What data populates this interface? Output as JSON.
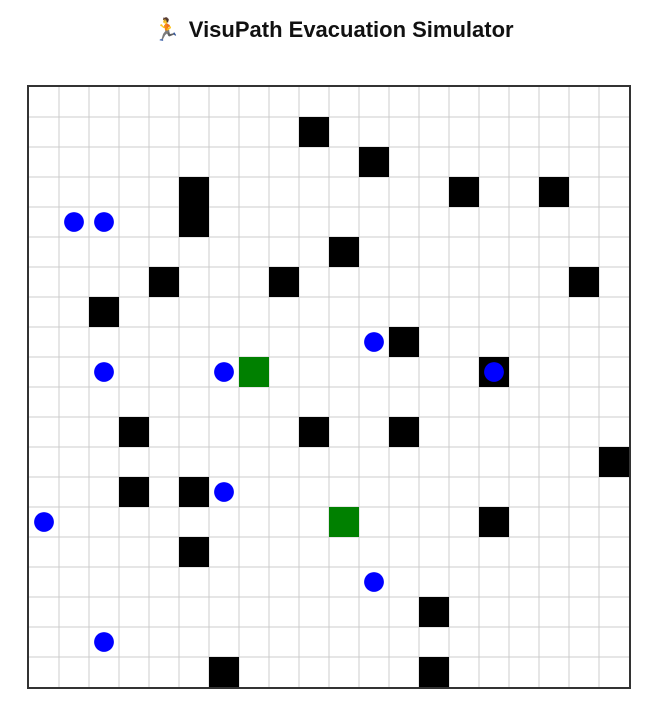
{
  "header": {
    "icon": "runner-icon",
    "icon_glyph": "🏃",
    "title": "VisuPath Evacuation Simulator"
  },
  "grid": {
    "rows": 20,
    "cols": 20,
    "colors": {
      "grid_line": "#cccccc",
      "border": "#333333",
      "obstacle": "#000000",
      "exit": "#008000",
      "agent": "#0000ff"
    },
    "obstacles": [
      {
        "row": 1,
        "col": 9
      },
      {
        "row": 2,
        "col": 11
      },
      {
        "row": 3,
        "col": 5
      },
      {
        "row": 3,
        "col": 14
      },
      {
        "row": 3,
        "col": 17
      },
      {
        "row": 4,
        "col": 5
      },
      {
        "row": 5,
        "col": 10
      },
      {
        "row": 6,
        "col": 4
      },
      {
        "row": 6,
        "col": 8
      },
      {
        "row": 6,
        "col": 18
      },
      {
        "row": 7,
        "col": 2
      },
      {
        "row": 8,
        "col": 12
      },
      {
        "row": 9,
        "col": 15
      },
      {
        "row": 11,
        "col": 3
      },
      {
        "row": 11,
        "col": 9
      },
      {
        "row": 11,
        "col": 12
      },
      {
        "row": 12,
        "col": 19
      },
      {
        "row": 13,
        "col": 3
      },
      {
        "row": 13,
        "col": 5
      },
      {
        "row": 14,
        "col": 15
      },
      {
        "row": 15,
        "col": 5
      },
      {
        "row": 17,
        "col": 13
      },
      {
        "row": 19,
        "col": 6
      },
      {
        "row": 19,
        "col": 13
      }
    ],
    "exits": [
      {
        "row": 9,
        "col": 7
      },
      {
        "row": 14,
        "col": 10
      }
    ],
    "agents": [
      {
        "row": 4,
        "col": 1
      },
      {
        "row": 4,
        "col": 2
      },
      {
        "row": 8,
        "col": 11
      },
      {
        "row": 9,
        "col": 2
      },
      {
        "row": 9,
        "col": 6
      },
      {
        "row": 9,
        "col": 15
      },
      {
        "row": 13,
        "col": 6
      },
      {
        "row": 14,
        "col": 0
      },
      {
        "row": 16,
        "col": 11
      },
      {
        "row": 18,
        "col": 2
      }
    ]
  }
}
